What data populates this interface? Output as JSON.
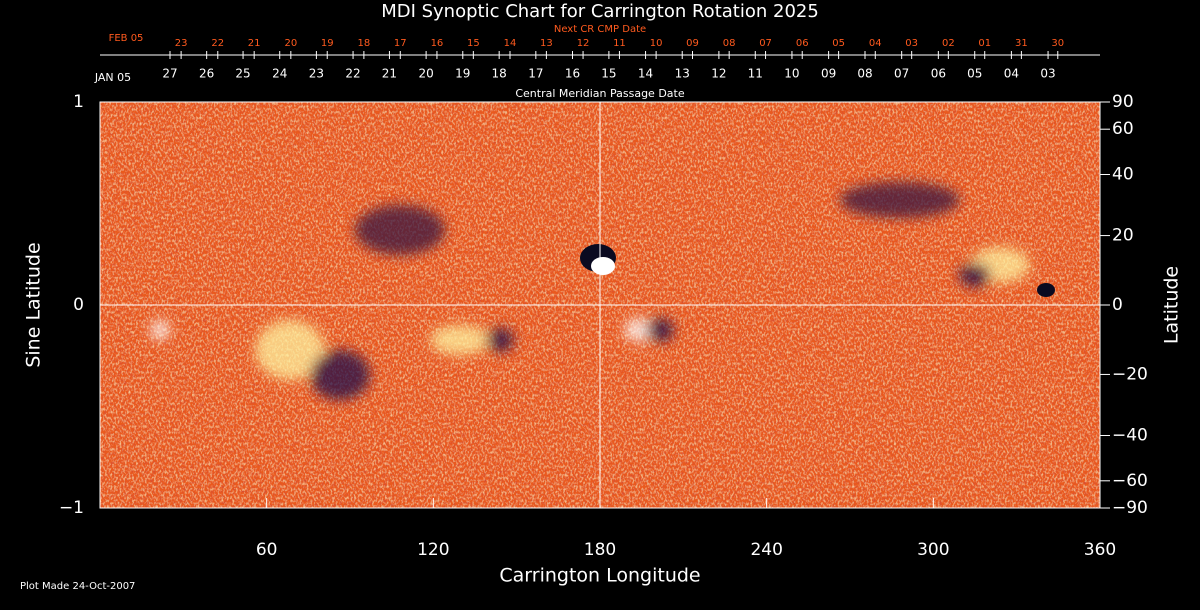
{
  "chart_data": {
    "type": "synoptic-map",
    "title": "MDI Synoptic Chart for Carrington Rotation 2025",
    "x_label": "Carrington Longitude",
    "y_label": "Sine Latitude",
    "y2_label": "Latitude",
    "xlim": [
      0,
      360
    ],
    "xticks": [
      60,
      120,
      180,
      240,
      300,
      360
    ],
    "ylim": [
      -1,
      1
    ],
    "yticks": [
      {
        "value": -1,
        "label": "−1"
      },
      0,
      1
    ],
    "y2scale": "sine",
    "y2lim": [
      -90,
      90
    ],
    "y2ticks": [
      {
        "value": -90,
        "label": "−90"
      },
      {
        "value": -60,
        "label": "−60"
      },
      {
        "value": -40,
        "label": "−40"
      },
      {
        "value": -20,
        "label": "−20"
      },
      0,
      20,
      40,
      60,
      90
    ],
    "cmp_axis": {
      "label": "Central Meridian Passage Date",
      "start_label": "JAN 05",
      "labels": [
        "27",
        "26",
        "25",
        "24",
        "23",
        "22",
        "21",
        "20",
        "19",
        "18",
        "17",
        "16",
        "15",
        "14",
        "13",
        "12",
        "11",
        "10",
        "09",
        "08",
        "07",
        "06",
        "05",
        "04",
        "03"
      ],
      "x": [
        25.2,
        38.4,
        51.5,
        64.7,
        77.9,
        91.1,
        104.2,
        117.4,
        130.6,
        143.7,
        156.9,
        170.1,
        183.2,
        196.4,
        209.6,
        222.8,
        235.9,
        249.1,
        262.3,
        275.4,
        288.6,
        301.8,
        314.9,
        328.1,
        341.3
      ],
      "color": "#ffffff"
    },
    "next_cr_axis": {
      "label": "Next CR CMP Date",
      "start_label": "FEB 05",
      "labels": [
        "23",
        "22",
        "21",
        "20",
        "19",
        "18",
        "17",
        "16",
        "15",
        "14",
        "13",
        "12",
        "11",
        "10",
        "09",
        "08",
        "07",
        "06",
        "05",
        "04",
        "03",
        "02",
        "01",
        "31",
        "30"
      ],
      "x": [
        29.2,
        42.4,
        55.5,
        68.7,
        81.8,
        95.0,
        108.1,
        121.3,
        134.4,
        147.6,
        160.7,
        173.9,
        187.0,
        200.2,
        213.3,
        226.5,
        239.6,
        252.8,
        265.9,
        279.1,
        292.2,
        305.4,
        318.5,
        331.7,
        344.8
      ],
      "color": "#ff5a1e"
    },
    "footnote": "Plot Made 24-Oct-2007"
  }
}
